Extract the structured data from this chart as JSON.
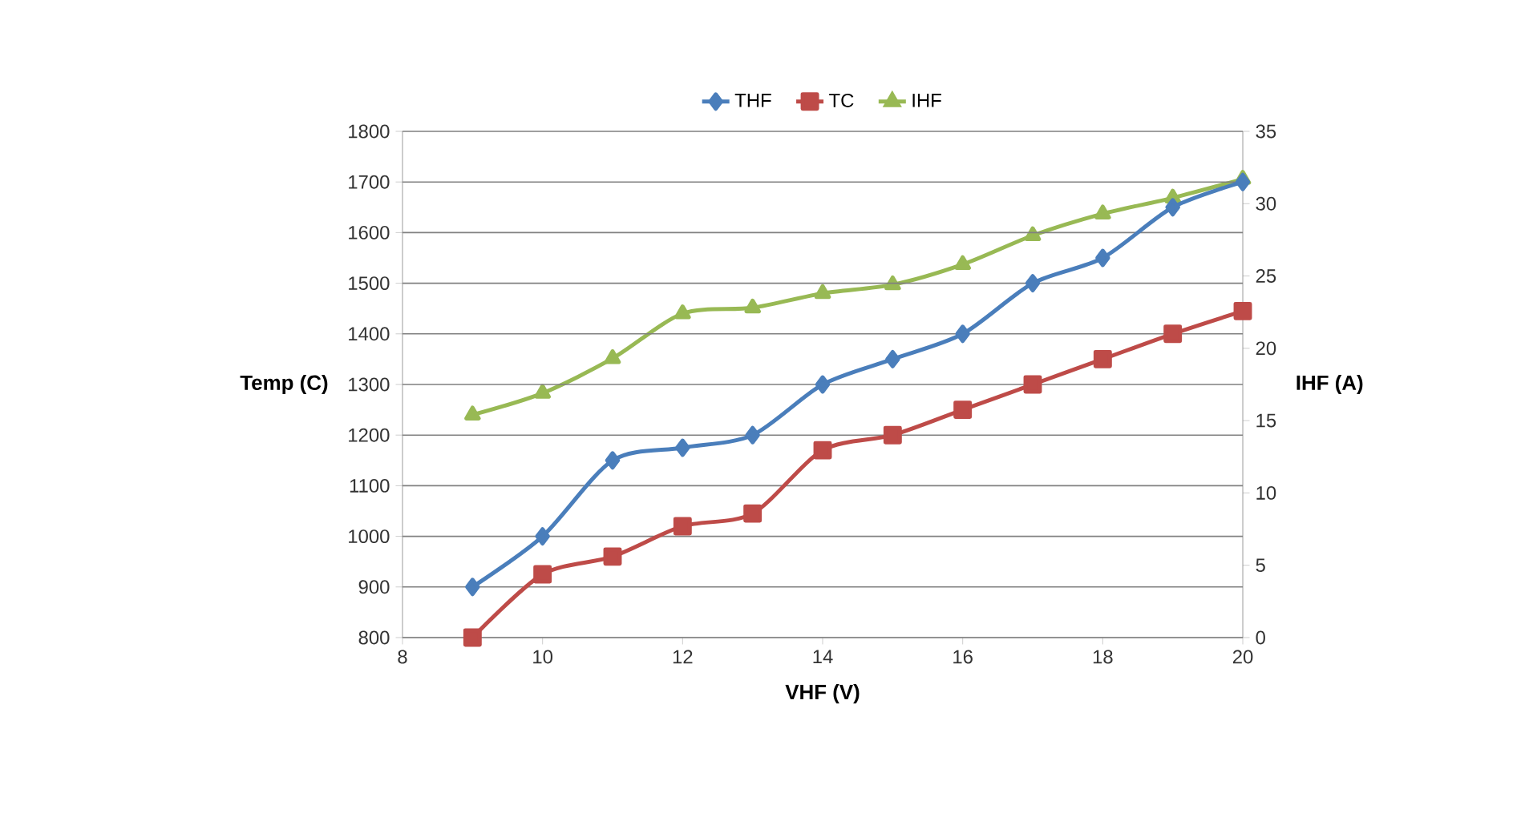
{
  "chart_data": {
    "type": "line",
    "xlabel": "VHF (V)",
    "ylabel": "Temp (C)",
    "y2label": "IHF (A)",
    "xlim": [
      8,
      20
    ],
    "xticks": [
      8,
      10,
      12,
      14,
      16,
      18,
      20
    ],
    "ylim": [
      800,
      1800
    ],
    "yticks": [
      800,
      900,
      1000,
      1100,
      1200,
      1300,
      1400,
      1500,
      1600,
      1700,
      1800
    ],
    "y2lim": [
      0,
      35
    ],
    "y2ticks": [
      0,
      5,
      10,
      15,
      20,
      25,
      30,
      35
    ],
    "grid": "y",
    "legend": "top",
    "x": [
      9,
      10,
      11,
      12,
      13,
      14,
      15,
      16,
      17,
      18,
      19,
      20
    ],
    "series": [
      {
        "name": "THF",
        "color": "#4a7ebb",
        "marker": "diamond",
        "values": [
          900,
          1000,
          1150,
          1175,
          1200,
          1300,
          1350,
          1400,
          1500,
          1550,
          1650,
          1700
        ]
      },
      {
        "name": "TC",
        "color": "#be4b48",
        "marker": "square",
        "values": [
          800,
          925,
          960,
          1020,
          1045,
          1170,
          1200,
          1250,
          1300,
          1350,
          1400,
          1445
        ]
      },
      {
        "name": "IHF",
        "color": "#98b954",
        "marker": "triangle",
        "axis": "y2",
        "values": [
          15.4,
          16.9,
          19.3,
          22.4,
          22.8,
          23.8,
          24.4,
          25.8,
          27.8,
          29.3,
          30.4,
          31.7
        ]
      }
    ]
  }
}
